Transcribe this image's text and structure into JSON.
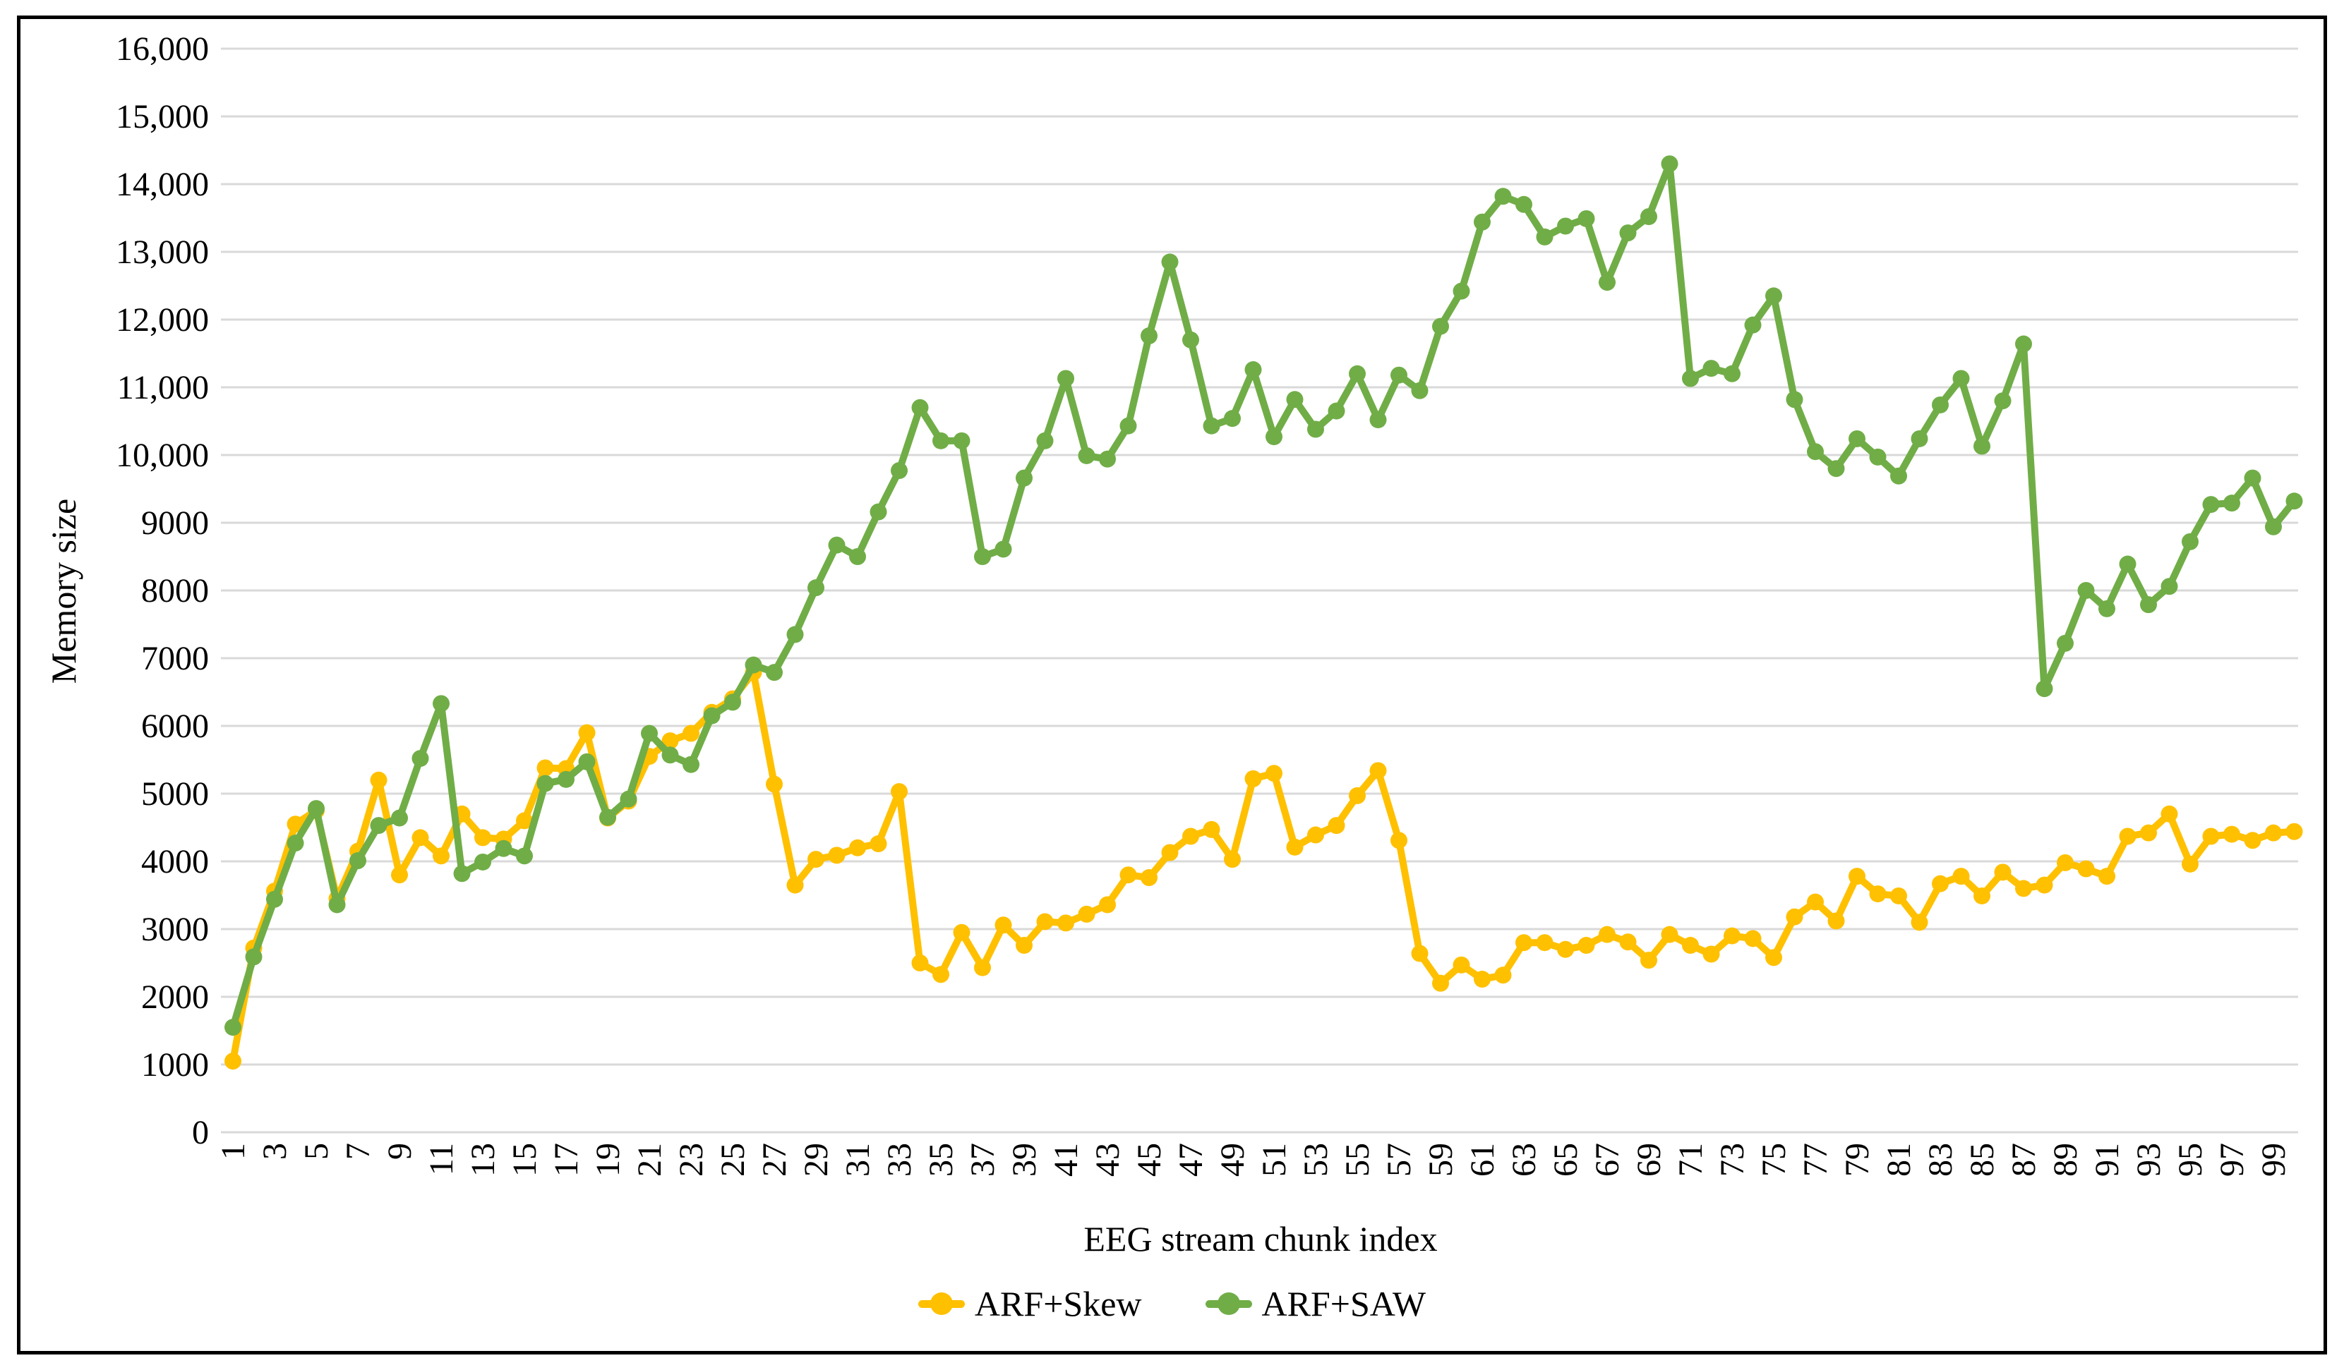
{
  "figure": {
    "y_axis_title": "Memory size",
    "x_axis_title": "EEG stream chunk index"
  },
  "chart_data": {
    "type": "line",
    "title": "",
    "xlabel": "EEG stream chunk index",
    "ylabel": "Memory size",
    "x_range": [
      1,
      100
    ],
    "ylim": [
      0,
      16000
    ],
    "y_tick_step": 1000,
    "grid": true,
    "legend_position": "bottom",
    "y_tick_labels": [
      "0",
      "1000",
      "2000",
      "3000",
      "4000",
      "5000",
      "6000",
      "7000",
      "8000",
      "9000",
      "10,000",
      "11,000",
      "12,000",
      "13,000",
      "14,000",
      "15,000",
      "16,000"
    ],
    "x_tick_labels": [
      "1",
      "3",
      "5",
      "7",
      "9",
      "11",
      "13",
      "15",
      "17",
      "19",
      "21",
      "23",
      "25",
      "27",
      "29",
      "31",
      "33",
      "35",
      "37",
      "39",
      "41",
      "43",
      "45",
      "47",
      "49",
      "51",
      "53",
      "55",
      "57",
      "59",
      "61",
      "63",
      "65",
      "67",
      "69",
      "71",
      "73",
      "75",
      "77",
      "79",
      "81",
      "83",
      "85",
      "87",
      "89",
      "91",
      "93",
      "95",
      "97",
      "99"
    ],
    "series": [
      {
        "name": "ARF+Skew",
        "color": "#FFC000",
        "values": [
          1050,
          2720,
          3560,
          4550,
          4750,
          3450,
          4150,
          5200,
          3800,
          4350,
          4080,
          4700,
          4350,
          4330,
          4600,
          5380,
          5370,
          5900,
          4640,
          4890,
          5550,
          5780,
          5890,
          6200,
          6400,
          6790,
          5140,
          3650,
          4030,
          4090,
          4200,
          4260,
          5030,
          2500,
          2330,
          2950,
          2430,
          3060,
          2760,
          3110,
          3090,
          3220,
          3360,
          3800,
          3760,
          4130,
          4370,
          4470,
          4030,
          5220,
          5300,
          4210,
          4390,
          4530,
          4970,
          5340,
          4310,
          2640,
          2200,
          2470,
          2260,
          2320,
          2800,
          2800,
          2700,
          2760,
          2920,
          2810,
          2540,
          2920,
          2760,
          2630,
          2900,
          2860,
          2580,
          3180,
          3400,
          3120,
          3780,
          3520,
          3490,
          3100,
          3670,
          3780,
          3490,
          3840,
          3600,
          3650,
          3980,
          3890,
          3780,
          4370,
          4420,
          4700,
          3960,
          4370,
          4400,
          4310,
          4420,
          4440
        ]
      },
      {
        "name": "ARF+SAW",
        "color": "#70AD47",
        "values": [
          1550,
          2590,
          3440,
          4270,
          4780,
          3360,
          4010,
          4530,
          4640,
          5520,
          6330,
          3820,
          3990,
          4190,
          4080,
          5150,
          5210,
          5470,
          4650,
          4920,
          5890,
          5570,
          5430,
          6150,
          6350,
          6900,
          6790,
          7350,
          8040,
          8670,
          8500,
          9160,
          9770,
          10700,
          10210,
          10210,
          8500,
          8610,
          9660,
          10210,
          11130,
          9990,
          9940,
          10430,
          11760,
          12850,
          11700,
          10430,
          10540,
          11260,
          10270,
          10820,
          10380,
          10650,
          11200,
          10520,
          11180,
          10950,
          11900,
          12420,
          13440,
          13820,
          13700,
          13220,
          13380,
          13490,
          12550,
          13280,
          13520,
          14300,
          11130,
          11280,
          11200,
          11920,
          12350,
          10820,
          10050,
          9800,
          10240,
          9970,
          9690,
          10240,
          10740,
          11130,
          10130,
          10800,
          11640,
          6550,
          7220,
          8000,
          7730,
          8390,
          7790,
          8060,
          8720,
          9270,
          9290,
          9660,
          8940,
          9320
        ]
      }
    ],
    "style": {
      "gridline_color": "#D9D9D9",
      "line_width": 10,
      "marker_radius": 12,
      "tick_font_px": 48
    }
  },
  "legend": {
    "items": [
      {
        "label": "ARF+Skew"
      },
      {
        "label": "ARF+SAW"
      }
    ]
  }
}
